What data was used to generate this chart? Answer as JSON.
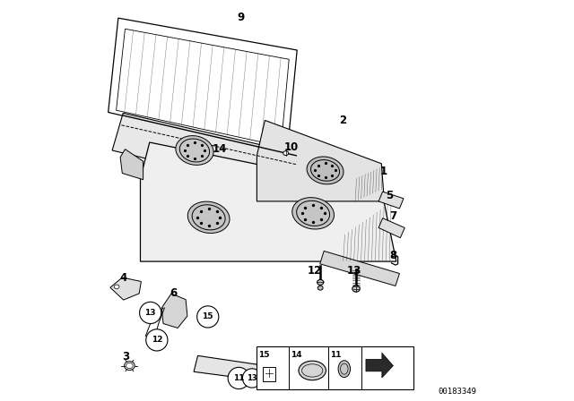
{
  "title": "",
  "background_color": "#ffffff",
  "line_color": "#000000",
  "part_number_text": "00183349",
  "figure_width": 6.4,
  "figure_height": 4.48,
  "dpi": 100
}
